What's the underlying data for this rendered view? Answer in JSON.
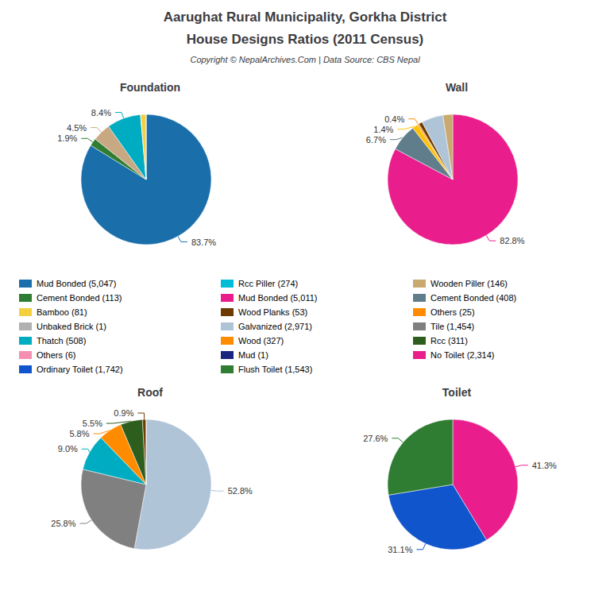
{
  "title": "Aarughat Rural Municipality, Gorkha District",
  "subtitle": "House Designs Ratios (2011 Census)",
  "annotations": [
    "Copyright © NepalArchives.Com | Data Source: CBS Nepal"
  ],
  "chart_data": [
    {
      "type": "pie",
      "title": "Foundation",
      "values": [
        83.7,
        1.9,
        4.5,
        8.4,
        0.1,
        1.3,
        0.0
      ],
      "value_labels": [
        "83.7%",
        "1.9%",
        "4.5%",
        "8.4%",
        null,
        null,
        null
      ],
      "colors": [
        "#1a6fab",
        "#2e7d32",
        "#c8a882",
        "#00acc1",
        "#f48fb1",
        "#f4d03f",
        "#b0b0b0"
      ],
      "data_labels": true
    },
    {
      "type": "pie",
      "title": "Wall",
      "values": [
        82.8,
        6.7,
        1.4,
        0.4,
        0.0,
        0.9,
        5.4,
        2.4
      ],
      "value_labels": [
        "82.8%",
        "6.7%",
        "1.4%",
        "0.4%",
        null,
        null,
        null,
        null
      ],
      "colors": [
        "#e91e8c",
        "#607d8b",
        "#ffc107",
        "#ff8c00",
        "#1155cc",
        "#6d3b00",
        "#b0c4d8",
        "#c8a96e"
      ],
      "data_labels": true
    },
    {
      "type": "pie",
      "title": "Roof",
      "values": [
        52.8,
        25.8,
        9.0,
        5.8,
        5.5,
        0.9,
        0.0
      ],
      "value_labels": [
        "52.8%",
        "25.8%",
        "9.0%",
        "5.8%",
        "5.5%",
        "0.9%",
        null
      ],
      "colors": [
        "#b0c4d8",
        "#808080",
        "#00acc1",
        "#ff8c00",
        "#2e5e1e",
        "#6d3b00",
        "#1155cc"
      ],
      "data_labels": true
    },
    {
      "type": "pie",
      "title": "Toilet",
      "values": [
        41.3,
        31.1,
        27.6
      ],
      "value_labels": [
        "41.3%",
        "31.1%",
        "27.6%"
      ],
      "colors": [
        "#e91e8c",
        "#1155cc",
        "#2e7d32"
      ],
      "data_labels": true
    }
  ],
  "legend_entries": [
    {
      "name": "Mud Bonded (5,047)",
      "color": "#1a6fab"
    },
    {
      "name": "Rcc Piller (274)",
      "color": "#00bcd4"
    },
    {
      "name": "Wooden Piller (146)",
      "color": "#c8a96e"
    },
    {
      "name": "Cement Bonded (113)",
      "color": "#2e7d32"
    },
    {
      "name": "Mud Bonded (5,011)",
      "color": "#e91e8c"
    },
    {
      "name": "Cement Bonded (408)",
      "color": "#607d8b"
    },
    {
      "name": "Bamboo (81)",
      "color": "#f4d03f"
    },
    {
      "name": "Wood Planks (53)",
      "color": "#6d3b00"
    },
    {
      "name": "Others (25)",
      "color": "#ff8c00"
    },
    {
      "name": "Unbaked Brick (1)",
      "color": "#b0b0b0"
    },
    {
      "name": "Galvanized (2,971)",
      "color": "#b0c4d8"
    },
    {
      "name": "Tile (1,454)",
      "color": "#808080"
    },
    {
      "name": "Thatch (508)",
      "color": "#00acc1"
    },
    {
      "name": "Wood (327)",
      "color": "#ff8c00"
    },
    {
      "name": "Rcc (311)",
      "color": "#2e5e1e"
    },
    {
      "name": "Others (6)",
      "color": "#f48fb1"
    },
    {
      "name": "Mud (1)",
      "color": "#1a237e"
    },
    {
      "name": "No Toilet (2,314)",
      "color": "#e91e8c"
    },
    {
      "name": "Ordinary Toilet (1,742)",
      "color": "#1155cc"
    },
    {
      "name": "Flush Toilet (1,543)",
      "color": "#2e7d32"
    }
  ]
}
